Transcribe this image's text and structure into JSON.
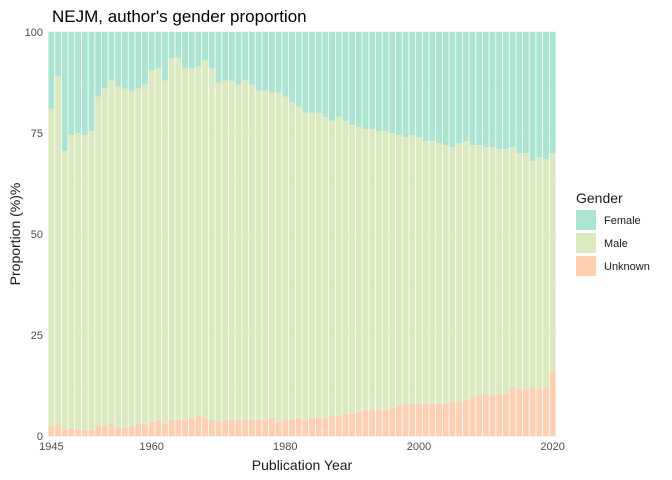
{
  "chart_data": {
    "type": "bar",
    "stacked": true,
    "title": "NEJM, author's gender proportion",
    "xlabel": "Publication Year",
    "ylabel": "Proportion (%)%",
    "xlim": [
      1944.5,
      2020.5
    ],
    "ylim": [
      0,
      100
    ],
    "x_ticks": [
      1945,
      1960,
      1980,
      2000,
      2020
    ],
    "y_ticks": [
      0,
      25,
      50,
      75,
      100
    ],
    "x_tick_labels": [
      "1945",
      "1960",
      "1980",
      "2000",
      "2020"
    ],
    "y_tick_labels": [
      "0",
      "25",
      "50",
      "75",
      "100"
    ],
    "grid": true,
    "legend": {
      "title": "Gender",
      "position": "right"
    },
    "x": [
      1945,
      1946,
      1947,
      1948,
      1949,
      1950,
      1951,
      1952,
      1953,
      1954,
      1955,
      1956,
      1957,
      1958,
      1959,
      1960,
      1961,
      1962,
      1963,
      1964,
      1965,
      1966,
      1967,
      1968,
      1969,
      1970,
      1971,
      1972,
      1973,
      1974,
      1975,
      1976,
      1977,
      1978,
      1979,
      1980,
      1981,
      1982,
      1983,
      1984,
      1985,
      1986,
      1987,
      1988,
      1989,
      1990,
      1991,
      1992,
      1993,
      1994,
      1995,
      1996,
      1997,
      1998,
      1999,
      2000,
      2001,
      2002,
      2003,
      2004,
      2005,
      2006,
      2007,
      2008,
      2009,
      2010,
      2011,
      2012,
      2013,
      2014,
      2015,
      2016,
      2017,
      2018,
      2019,
      2020
    ],
    "series": [
      {
        "name": "Unknown",
        "color": "#fdd0b1",
        "values": [
          2.5,
          3.0,
          1.5,
          2.0,
          1.5,
          1.5,
          1.5,
          2.5,
          2.5,
          3.0,
          2.0,
          2.0,
          2.5,
          3.0,
          3.0,
          3.5,
          4.0,
          3.0,
          4.0,
          4.0,
          4.0,
          4.5,
          5.0,
          4.5,
          4.0,
          3.5,
          4.0,
          4.0,
          4.0,
          4.0,
          4.0,
          4.0,
          4.0,
          4.5,
          3.5,
          4.0,
          4.0,
          4.5,
          4.0,
          4.5,
          4.5,
          4.5,
          5.0,
          5.0,
          5.5,
          5.5,
          6.0,
          6.5,
          6.5,
          6.5,
          6.5,
          7.0,
          7.5,
          8.0,
          8.0,
          8.0,
          8.0,
          8.0,
          8.0,
          8.0,
          8.5,
          8.5,
          9.0,
          9.5,
          10.0,
          10.5,
          10.0,
          10.5,
          10.5,
          12.0,
          11.5,
          11.5,
          12.0,
          11.5,
          12.0,
          16.0
        ]
      },
      {
        "name": "Male",
        "color": "#dcebbf",
        "values": [
          78.5,
          86.0,
          69.0,
          72.5,
          73.5,
          73.0,
          74.0,
          81.5,
          83.5,
          85.0,
          84.5,
          84.0,
          83.0,
          83.0,
          84.0,
          87.0,
          87.0,
          85.0,
          89.5,
          89.5,
          87.0,
          86.5,
          86.5,
          88.5,
          87.0,
          84.0,
          84.0,
          84.0,
          83.0,
          84.0,
          83.0,
          81.5,
          81.5,
          80.5,
          81.5,
          80.0,
          78.5,
          77.0,
          76.0,
          75.5,
          75.5,
          74.5,
          73.0,
          74.0,
          72.5,
          71.5,
          70.5,
          69.5,
          69.5,
          69.0,
          69.0,
          68.0,
          67.0,
          66.0,
          66.5,
          66.0,
          65.0,
          65.0,
          64.5,
          64.0,
          63.0,
          64.0,
          64.0,
          62.5,
          62.0,
          61.0,
          61.5,
          60.5,
          60.5,
          59.5,
          58.5,
          58.5,
          56.0,
          57.5,
          56.5,
          54.0
        ]
      },
      {
        "name": "Female",
        "color": "#abe5d1",
        "values": [
          19.0,
          11.0,
          29.5,
          25.5,
          25.0,
          25.5,
          24.5,
          16.0,
          14.0,
          12.0,
          13.5,
          14.0,
          14.5,
          14.0,
          13.0,
          9.5,
          9.0,
          12.0,
          6.5,
          6.5,
          9.0,
          9.0,
          8.5,
          7.0,
          9.0,
          12.5,
          12.0,
          12.0,
          13.0,
          12.0,
          13.0,
          14.5,
          14.5,
          15.0,
          15.0,
          16.0,
          17.5,
          18.5,
          20.0,
          20.0,
          20.0,
          21.0,
          22.0,
          21.0,
          22.0,
          23.0,
          23.5,
          24.0,
          24.0,
          24.5,
          24.5,
          25.0,
          25.5,
          26.0,
          25.5,
          26.0,
          27.0,
          27.0,
          27.5,
          28.0,
          28.5,
          27.5,
          27.0,
          28.0,
          28.0,
          28.5,
          28.5,
          29.0,
          29.0,
          28.5,
          30.0,
          30.0,
          32.0,
          31.0,
          31.5,
          30.0
        ]
      }
    ]
  }
}
